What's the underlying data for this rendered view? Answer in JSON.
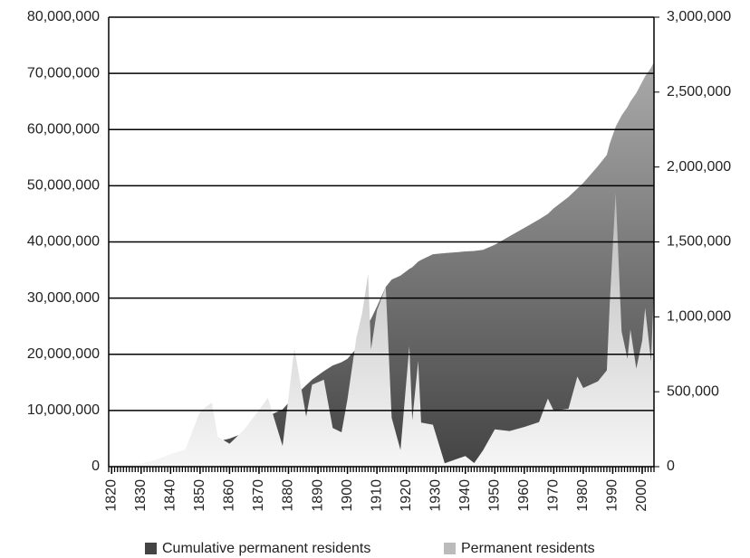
{
  "chart_data": {
    "type": "area",
    "x": [
      1820,
      1825,
      1830,
      1835,
      1840,
      1845,
      1850,
      1854,
      1856,
      1860,
      1865,
      1869,
      1873,
      1878,
      1882,
      1886,
      1888,
      1892,
      1895,
      1898,
      1900,
      1903,
      1905,
      1907,
      1908,
      1910,
      1913,
      1915,
      1918,
      1921,
      1922,
      1924,
      1925,
      1929,
      1933,
      1940,
      1943,
      1946,
      1950,
      1955,
      1960,
      1965,
      1968,
      1970,
      1975,
      1978,
      1980,
      1985,
      1988,
      1989,
      1991,
      1993,
      1995,
      1996,
      1998,
      2000,
      2001,
      2003,
      2004
    ],
    "series": [
      {
        "name": "Cumulative permanent residents",
        "color": "#444444",
        "values": [
          10000,
          60000,
          150000,
          500000,
          750000,
          1300000,
          2400000,
          4000000,
          4500000,
          5000000,
          6000000,
          7300000,
          9000000,
          10200000,
          12500000,
          14500000,
          15500000,
          17000000,
          18000000,
          18600000,
          19200000,
          21000000,
          23000000,
          25500000,
          26300000,
          28500000,
          32000000,
          33300000,
          34000000,
          35200000,
          35500000,
          36500000,
          36800000,
          37800000,
          38000000,
          38300000,
          38400000,
          38600000,
          39500000,
          41000000,
          42500000,
          44000000,
          45000000,
          46000000,
          48000000,
          49500000,
          50500000,
          53500000,
          55500000,
          57500000,
          60500000,
          62500000,
          64000000,
          65000000,
          66500000,
          68500000,
          69500000,
          71000000,
          72000000
        ]
      },
      {
        "name": "Permanent residents",
        "color": "#bbbbbb",
        "axis": "y2",
        "values": [
          8000,
          10000,
          23000,
          45000,
          84000,
          114000,
          370000,
          428000,
          200000,
          153000,
          248000,
          352000,
          460000,
          138000,
          789000,
          334000,
          547000,
          580000,
          258000,
          229000,
          449000,
          857000,
          1026000,
          1285000,
          782000,
          1042000,
          1198000,
          327000,
          111000,
          805000,
          310000,
          707000,
          294000,
          280000,
          23000,
          71000,
          24000,
          109000,
          249000,
          238000,
          265000,
          297000,
          454000,
          373000,
          386000,
          601000,
          525000,
          570000,
          643000,
          1091000,
          1827000,
          904000,
          720000,
          916000,
          654000,
          841000,
          1059000,
          704000,
          1200000
        ]
      }
    ],
    "xlim": [
      1819,
      2004
    ],
    "xticks": [
      1820,
      1830,
      1840,
      1850,
      1860,
      1870,
      1880,
      1890,
      1900,
      1910,
      1920,
      1930,
      1940,
      1950,
      1960,
      1970,
      1980,
      1990,
      2000
    ],
    "ylim": [
      0,
      80000000
    ],
    "yticks": [
      0,
      {
        "value": 10000000,
        "label": "10,000,000"
      },
      {
        "value": 20000000,
        "label": "20,000,000"
      },
      {
        "value": 30000000,
        "label": "30,000,000"
      },
      {
        "value": 40000000,
        "label": "40,000,000"
      },
      {
        "value": 50000000,
        "label": "50,000,000"
      },
      {
        "value": 60000000,
        "label": "60,000,000"
      },
      {
        "value": 70000000,
        "label": "70,000,000"
      },
      {
        "value": 80000000,
        "label": "80,000,000"
      }
    ],
    "y2lim": [
      0,
      3000000
    ],
    "y2ticks": [
      0,
      {
        "value": 500000,
        "label": "500,000"
      },
      {
        "value": 1000000,
        "label": "1,000,000"
      },
      {
        "value": 1500000,
        "label": "1,500,000"
      },
      {
        "value": 2000000,
        "label": "2,000,000"
      },
      {
        "value": 2500000,
        "label": "2,500,000"
      },
      {
        "value": 3000000,
        "label": "3,000,000"
      }
    ],
    "grid": true,
    "legend": "bottom"
  }
}
